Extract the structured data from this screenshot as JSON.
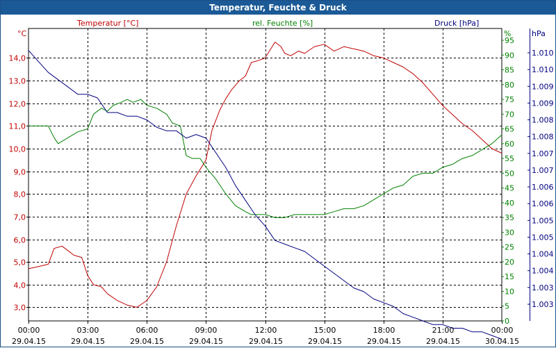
{
  "window": {
    "title": "Temperatur, Feuchte & Druck"
  },
  "chart_data": {
    "type": "line",
    "title": "Temperatur, Feuchte & Druck",
    "x_ticks": [
      {
        "time": "00:00",
        "date": "29.04.15"
      },
      {
        "time": "03:00",
        "date": "29.04.15"
      },
      {
        "time": "06:00",
        "date": "29.04.15"
      },
      {
        "time": "09:00",
        "date": "29.04.15"
      },
      {
        "time": "12:00",
        "date": "29.04.15"
      },
      {
        "time": "15:00",
        "date": "29.04.15"
      },
      {
        "time": "18:00",
        "date": "29.04.15"
      },
      {
        "time": "21:00",
        "date": "29.04.15"
      },
      {
        "time": "00:00",
        "date": "30.04.15"
      }
    ],
    "x_range_hours": [
      0,
      24
    ],
    "axes": {
      "temperature": {
        "unit": "°C",
        "label": "Temperatur [°C]",
        "color": "#c00000",
        "ylim": [
          2.4,
          15.3
        ],
        "ticks": [
          "3,0",
          "4,0",
          "5,0",
          "6,0",
          "7,0",
          "8,0",
          "9,0",
          "10,0",
          "11,0",
          "12,0",
          "13,0",
          "14,0"
        ]
      },
      "humidity": {
        "unit": "%",
        "label": "rel. Feuchte [%]",
        "color": "#008000",
        "ylim": [
          0,
          99
        ],
        "ticks": [
          "0",
          "5",
          "10",
          "15",
          "20",
          "25",
          "30",
          "35",
          "40",
          "45",
          "50",
          "55",
          "60",
          "65",
          "70",
          "75",
          "80",
          "85",
          "90",
          "95"
        ]
      },
      "pressure": {
        "unit": "hPa",
        "label": "Druck [hPa]",
        "color": "#000080",
        "ylim": [
          1002.5,
          1010.5
        ],
        "ticks": [
          "1.003",
          "1.003",
          "1.004",
          "1.004",
          "1.005",
          "1.005",
          "1.006",
          "1.006",
          "1.007",
          "1.007",
          "1.008",
          "1.008",
          "1.009",
          "1.009",
          "1.010",
          "1.010"
        ]
      }
    },
    "grid": true,
    "series": [
      {
        "name": "Temperatur [°C]",
        "axis": "temperature",
        "color": "#c00000",
        "x": [
          0,
          0.5,
          1,
          1.3,
          1.7,
          2,
          2.3,
          2.7,
          3,
          3.3,
          3.7,
          4,
          4.5,
          5,
          5.5,
          6,
          6.5,
          7,
          7.5,
          8,
          8.5,
          9,
          9.3,
          9.7,
          10,
          10.3,
          10.7,
          11,
          11.3,
          11.7,
          12,
          12.5,
          12.8,
          13,
          13.3,
          13.7,
          14,
          14.5,
          15,
          15.5,
          16,
          16.5,
          17,
          17.5,
          18,
          18.5,
          19,
          19.5,
          20,
          20.5,
          21,
          21.5,
          22,
          22.5,
          23,
          23.5,
          24
        ],
        "values": [
          4.7,
          4.8,
          4.9,
          5.6,
          5.7,
          5.5,
          5.3,
          5.2,
          4.4,
          4.0,
          3.9,
          3.6,
          3.3,
          3.1,
          3.0,
          3.3,
          3.9,
          5.0,
          6.6,
          8.0,
          8.8,
          9.5,
          10.8,
          11.7,
          12.2,
          12.6,
          13.0,
          13.2,
          13.8,
          13.9,
          14.0,
          14.7,
          14.5,
          14.2,
          14.1,
          14.3,
          14.2,
          14.5,
          14.6,
          14.3,
          14.5,
          14.4,
          14.3,
          14.1,
          14.0,
          13.8,
          13.6,
          13.3,
          12.9,
          12.4,
          11.9,
          11.5,
          11.1,
          10.8,
          10.4,
          10.0,
          9.8
        ]
      },
      {
        "name": "rel. Feuchte [%]",
        "axis": "humidity",
        "color": "#008000",
        "x": [
          0,
          0.5,
          1,
          1.3,
          1.5,
          2,
          2.5,
          3,
          3.3,
          3.7,
          4,
          4.3,
          4.7,
          5,
          5.3,
          5.7,
          6,
          6.5,
          7,
          7.3,
          7.7,
          8,
          8.3,
          8.7,
          9,
          9.5,
          10,
          10.5,
          11,
          11.3,
          11.7,
          12,
          12.5,
          13,
          13.5,
          14,
          14.5,
          15,
          15.5,
          16,
          16.5,
          17,
          17.5,
          18,
          18.5,
          19,
          19.5,
          20,
          20.5,
          21,
          21.5,
          22,
          22.5,
          23,
          23.5,
          24
        ],
        "values": [
          66,
          66,
          66,
          62,
          60,
          62,
          64,
          65,
          70,
          72,
          71,
          73,
          74,
          75,
          74,
          75,
          73,
          72,
          70,
          67,
          66,
          56,
          55,
          55,
          52,
          48,
          43,
          39,
          37,
          36,
          36,
          36,
          35,
          35,
          36,
          36,
          36,
          36,
          37,
          38,
          38,
          39,
          41,
          43,
          45,
          46,
          49,
          50,
          50,
          52,
          53,
          55,
          56,
          58,
          60,
          63
        ]
      },
      {
        "name": "Druck [hPa]",
        "axis": "pressure",
        "color": "#000080",
        "x": [
          0,
          0.5,
          1,
          1.5,
          2,
          2.5,
          3,
          3.5,
          4,
          4.5,
          5,
          5.5,
          6,
          6.5,
          7,
          7.5,
          8,
          8.5,
          9,
          9.5,
          10,
          10.5,
          11,
          11.5,
          12,
          12.5,
          13,
          13.5,
          14,
          14.5,
          15,
          15.5,
          16,
          16.5,
          17,
          17.5,
          18,
          18.5,
          19,
          19.5,
          20,
          20.5,
          21,
          21.5,
          22,
          22.5,
          23,
          23.5,
          24
        ],
        "values": [
          1009.9,
          1009.6,
          1009.3,
          1009.1,
          1008.9,
          1008.7,
          1008.7,
          1008.6,
          1008.2,
          1008.2,
          1008.1,
          1008.1,
          1008.0,
          1007.8,
          1007.7,
          1007.7,
          1007.5,
          1007.6,
          1007.5,
          1007.1,
          1006.7,
          1006.2,
          1005.8,
          1005.4,
          1005.1,
          1004.7,
          1004.6,
          1004.5,
          1004.4,
          1004.2,
          1004.0,
          1003.8,
          1003.6,
          1003.4,
          1003.3,
          1003.1,
          1003.0,
          1002.9,
          1002.7,
          1002.6,
          1002.5,
          1002.4,
          1002.4,
          1002.3,
          1002.3,
          1002.2,
          1002.2,
          1002.1,
          1002.0
        ]
      }
    ]
  }
}
